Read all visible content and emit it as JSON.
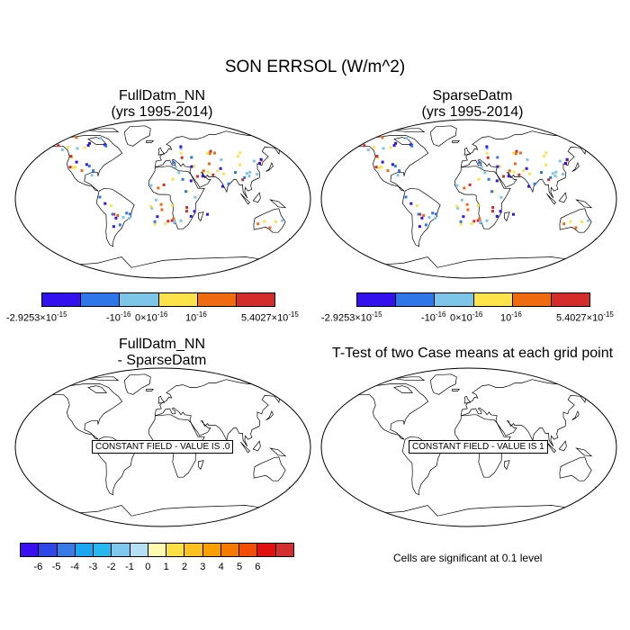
{
  "title": "SON ERRSOL (W/m^2)",
  "panels": {
    "p1": {
      "line1": "FullDatm_NN",
      "line2": "(yrs 1995-2014)"
    },
    "p2": {
      "line1": "SparseDatm",
      "line2": "(yrs 1995-2014)"
    },
    "p3": {
      "line1": "FullDatm_NN",
      "line2": "- SparseDatm",
      "constant_label": "CONSTANT FIELD - VALUE IS .0"
    },
    "p4": {
      "line1": "T-Test of two Case means at each grid point",
      "constant_label": "CONSTANT FIELD - VALUE IS 1"
    }
  },
  "top_colorbar": {
    "colors": [
      "#3311ee",
      "#2f77e8",
      "#7ec5ea",
      "#fde34a",
      "#f06a10",
      "#d42b2b"
    ],
    "labels": [
      {
        "base": "-2.9253×10",
        "exp": "-15"
      },
      {
        "base": "-10",
        "exp": "-16"
      },
      {
        "base": "0×10",
        "exp": "-16"
      },
      {
        "base": "10",
        "exp": "-16"
      },
      {
        "base": "5.4027×10",
        "exp": "-15"
      }
    ]
  },
  "diff_colorbar": {
    "colors": [
      "#3a10f0",
      "#2f46e6",
      "#3a7ae6",
      "#1aa6f0",
      "#28b8f0",
      "#7cc8ee",
      "#b4e0f6",
      "#fefab0",
      "#fce046",
      "#fcc020",
      "#f9a000",
      "#f77a00",
      "#f24d00",
      "#e01010",
      "#d23030"
    ],
    "labels": [
      "-6",
      "-5",
      "-4",
      "-3",
      "-2",
      "-1",
      "0",
      "1",
      "2",
      "3",
      "4",
      "5",
      "6"
    ]
  },
  "note": "Cells are significant at 0.1 level"
}
